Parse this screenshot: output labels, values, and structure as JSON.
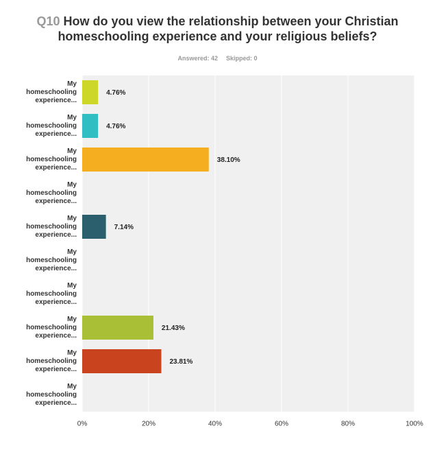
{
  "chart_data": {
    "type": "bar",
    "orientation": "horizontal",
    "question_number": "Q10",
    "title": "How do you view the relationship between your Christian homeschooling experience and your religious beliefs?",
    "answered": "Answered: 42",
    "skipped": "Skipped: 0",
    "categories": [
      "My homeschooling experience...",
      "My homeschooling experience...",
      "My homeschooling experience...",
      "My homeschooling experience...",
      "My homeschooling experience...",
      "My homeschooling experience...",
      "My homeschooling experience...",
      "My homeschooling experience...",
      "My homeschooling experience...",
      "My homeschooling experience..."
    ],
    "values": [
      4.76,
      4.76,
      38.1,
      0,
      7.14,
      0,
      0,
      21.43,
      23.81,
      0
    ],
    "value_labels": [
      "4.76%",
      "4.76%",
      "38.10%",
      null,
      "7.14%",
      null,
      null,
      "21.43%",
      "23.81%",
      null
    ],
    "colors": [
      "#cdd72a",
      "#2fbfc2",
      "#f5ae20",
      "#8a6fb4",
      "#2b5f6e",
      "#e05a8a",
      "#4e8fd1",
      "#a8bf36",
      "#c9431e",
      "#7a7a7a"
    ],
    "xlim": [
      0,
      100
    ],
    "xticks": [
      {
        "value": 0,
        "label": "0%"
      },
      {
        "value": 20,
        "label": "20%"
      },
      {
        "value": 40,
        "label": "40%"
      },
      {
        "value": 60,
        "label": "60%"
      },
      {
        "value": 80,
        "label": "80%"
      },
      {
        "value": 100,
        "label": "100%"
      }
    ],
    "grid": true
  }
}
